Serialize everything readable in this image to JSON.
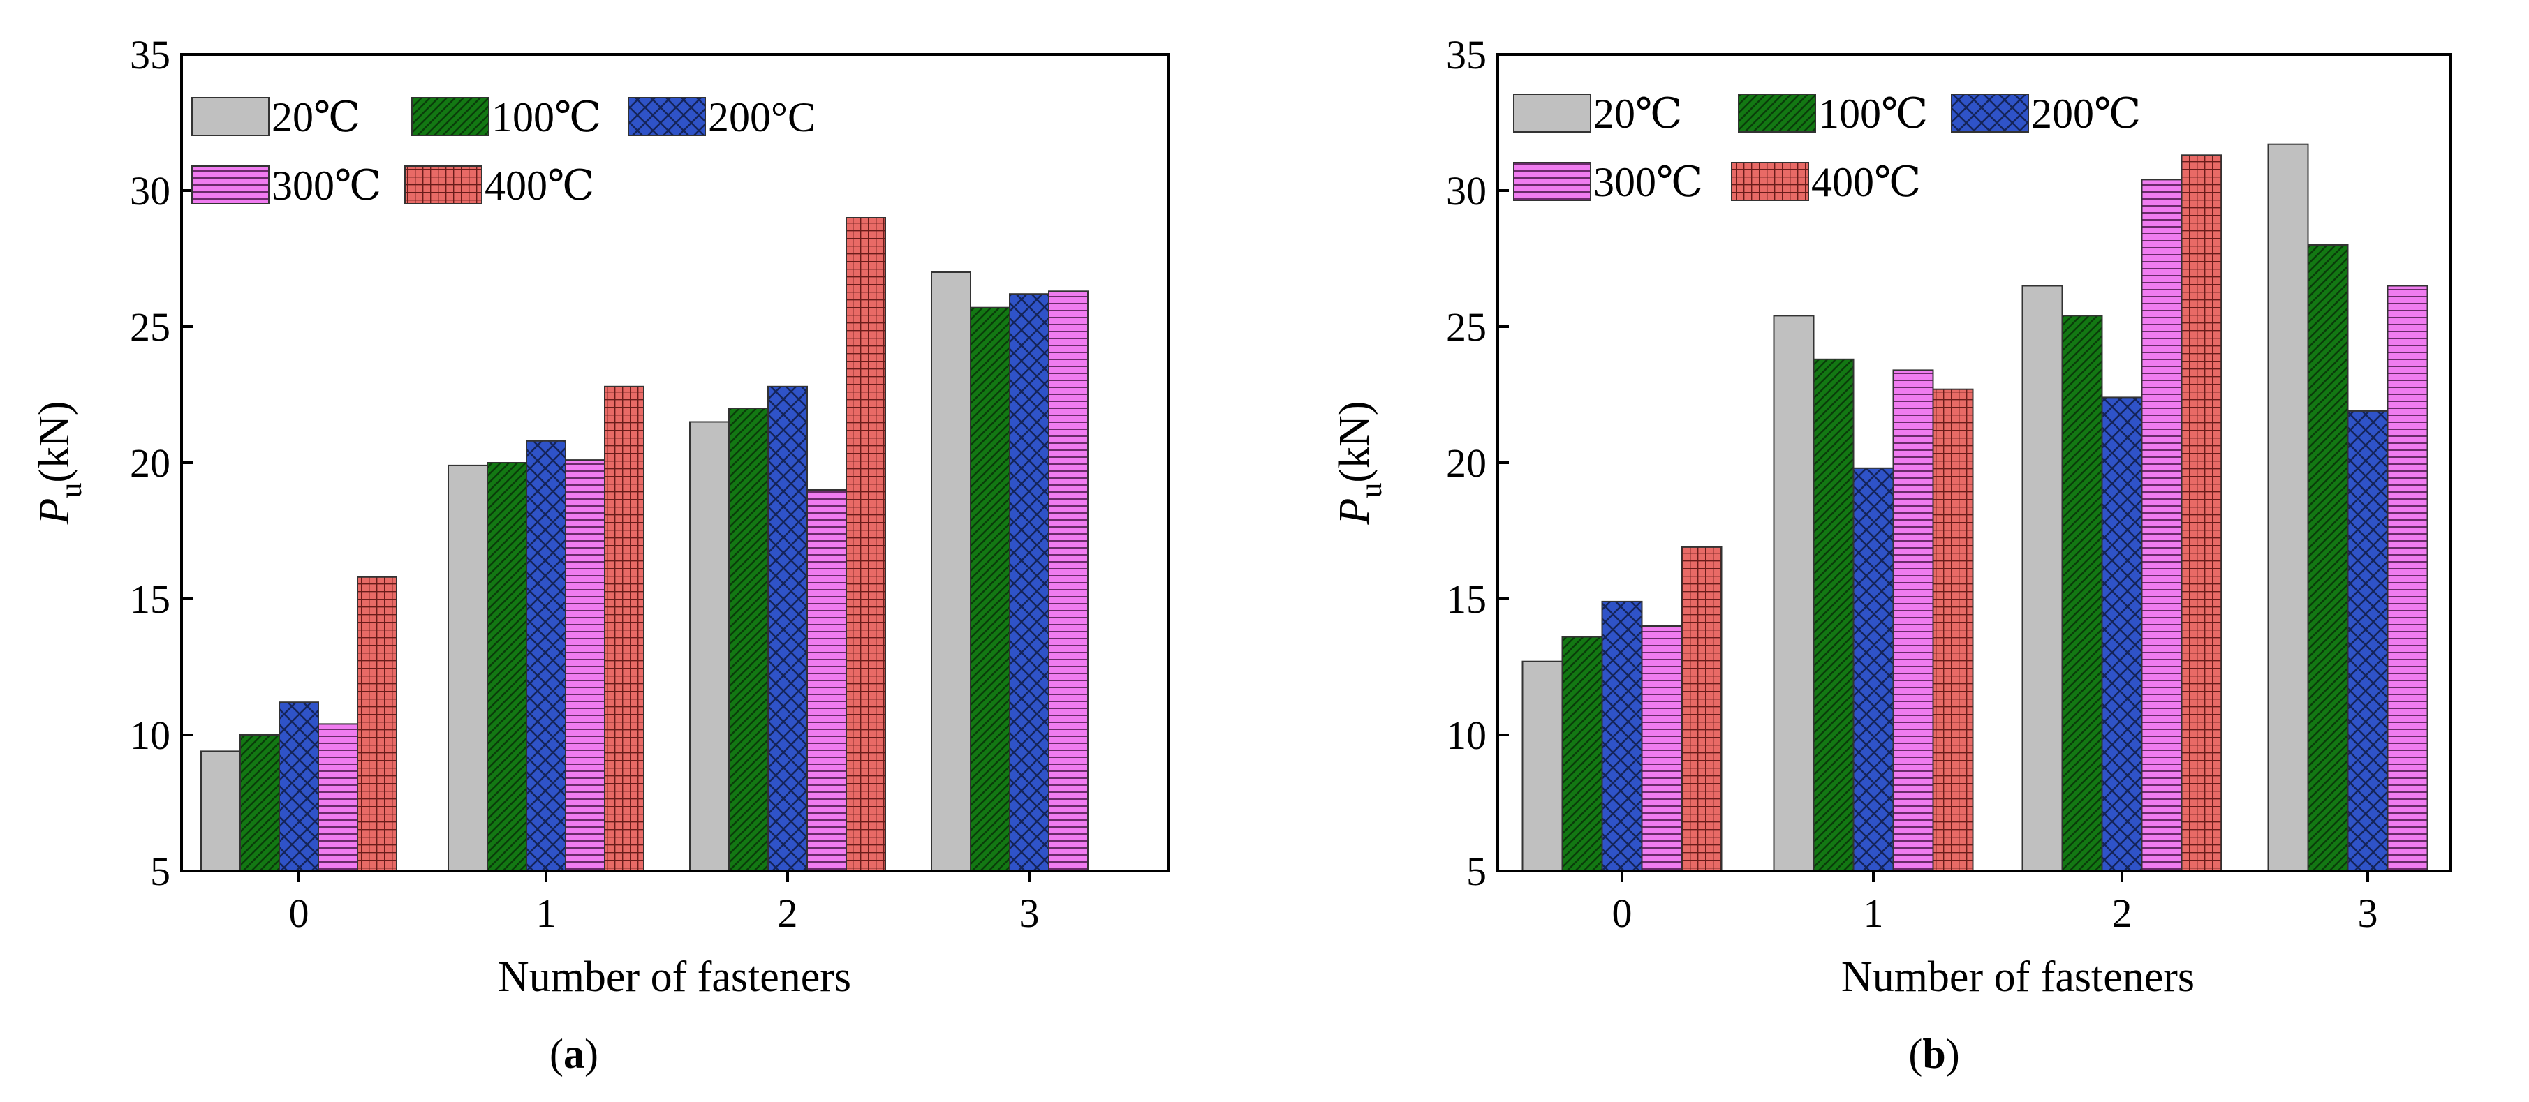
{
  "figure": {
    "palette": {
      "20": "#c0c0c0",
      "100": "#137813",
      "200": "#2f53c8",
      "300": "#f07cf0",
      "400": "#e86a66"
    }
  },
  "chart_data": [
    {
      "type": "bar",
      "panel": "a",
      "caption": {
        "open": "(",
        "letter": "a",
        "close": ")"
      },
      "categories": [
        "0",
        "1",
        "2",
        "3"
      ],
      "series": [
        {
          "name": "20℃",
          "key": "20",
          "values": [
            9.4,
            19.9,
            21.5,
            27.0
          ]
        },
        {
          "name": "100℃",
          "key": "100",
          "values": [
            10.0,
            20.0,
            22.0,
            25.7
          ]
        },
        {
          "name": "200°C",
          "key": "200",
          "values": [
            11.2,
            20.8,
            22.8,
            26.2
          ]
        },
        {
          "name": "300℃",
          "key": "300",
          "values": [
            10.4,
            20.1,
            19.0,
            26.3
          ]
        },
        {
          "name": "400℃",
          "key": "400",
          "values": [
            15.8,
            22.8,
            29.0,
            null
          ]
        }
      ],
      "xlabel": "Number of fasteners",
      "ylabel": {
        "main": "P",
        "sub": "u",
        "unit": "(kN)"
      },
      "ylim": [
        5,
        35
      ],
      "yticks": [
        "5",
        "10",
        "15",
        "20",
        "25",
        "30",
        "35"
      ],
      "legend": "top-left"
    },
    {
      "type": "bar",
      "panel": "b",
      "caption": {
        "open": "(",
        "letter": "b",
        "close": ")"
      },
      "categories": [
        "0",
        "1",
        "2",
        "3"
      ],
      "series": [
        {
          "name": "20℃",
          "key": "20",
          "values": [
            12.7,
            25.4,
            26.5,
            31.7
          ]
        },
        {
          "name": "100℃",
          "key": "100",
          "values": [
            13.6,
            23.8,
            25.4,
            28.0
          ]
        },
        {
          "name": "200℃",
          "key": "200",
          "values": [
            14.9,
            19.8,
            22.4,
            21.9
          ]
        },
        {
          "name": "300℃",
          "key": "300",
          "values": [
            14.0,
            23.4,
            30.4,
            26.5
          ]
        },
        {
          "name": "400℃",
          "key": "400",
          "values": [
            16.9,
            22.7,
            31.3,
            null
          ]
        }
      ],
      "xlabel": "Number of fasteners",
      "ylabel": {
        "main": "P",
        "sub": "u",
        "unit": "(kN)"
      },
      "ylim": [
        5,
        35
      ],
      "yticks": [
        "5",
        "10",
        "15",
        "20",
        "25",
        "30",
        "35"
      ],
      "legend": "top-left"
    }
  ]
}
